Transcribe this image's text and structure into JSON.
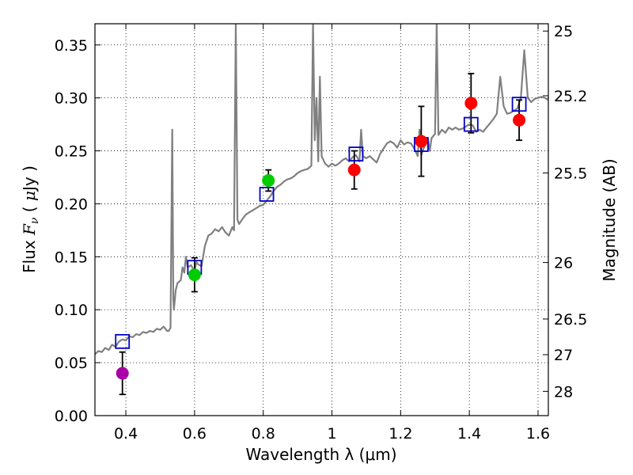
{
  "chart_data": {
    "type": "scatter",
    "xlabel": "Wavelength  λ (μm)",
    "ylabel_parts": [
      "Flux ",
      "F",
      "ν",
      "  ( ",
      "μ",
      "Jy )"
    ],
    "y2label": "Magnitude (AB)",
    "xlim": [
      0.31,
      1.63
    ],
    "ylim": [
      0.0,
      0.37
    ],
    "grid": true,
    "x_ticks": [
      0.4,
      0.6,
      0.8,
      1.0,
      1.2,
      1.4,
      1.6
    ],
    "x_tick_labels": [
      "0.4",
      "0.6",
      "0.8",
      "1",
      "1.2",
      "1.4",
      "1.6"
    ],
    "y_ticks": [
      0.0,
      0.05,
      0.1,
      0.15,
      0.2,
      0.25,
      0.3,
      0.35
    ],
    "y_tick_labels": [
      "0.00",
      "0.05",
      "0.10",
      "0.15",
      "0.20",
      "0.25",
      "0.30",
      "0.35"
    ],
    "y2_ticks": [
      25,
      25.2,
      25.5,
      26,
      26.5,
      27,
      28
    ],
    "y2_tick_labels": [
      "25",
      "25.2",
      "25.5",
      "26",
      "26.5",
      "27",
      "28"
    ],
    "colors": {
      "purple": "#aa00aa",
      "green": "#00cc00",
      "red": "#ff0000",
      "model": "#808080",
      "box": "#0000cc",
      "errorbar": "#000000",
      "grid": "#000000"
    },
    "observed": [
      {
        "x": 0.39,
        "y": 0.04,
        "err": 0.02,
        "color": "purple"
      },
      {
        "x": 0.6,
        "y": 0.133,
        "err": 0.016,
        "color": "green"
      },
      {
        "x": 0.815,
        "y": 0.222,
        "err": 0.01,
        "color": "green"
      },
      {
        "x": 1.065,
        "y": 0.232,
        "err": 0.018,
        "color": "red"
      },
      {
        "x": 1.26,
        "y": 0.259,
        "err": 0.033,
        "color": "red"
      },
      {
        "x": 1.405,
        "y": 0.295,
        "err": 0.028,
        "color": "red"
      },
      {
        "x": 1.545,
        "y": 0.279,
        "err": 0.019,
        "color": "red"
      }
    ],
    "model_photometry": [
      {
        "x": 0.39,
        "y": 0.07
      },
      {
        "x": 0.6,
        "y": 0.14
      },
      {
        "x": 0.81,
        "y": 0.209
      },
      {
        "x": 1.07,
        "y": 0.247
      },
      {
        "x": 1.26,
        "y": 0.256
      },
      {
        "x": 1.405,
        "y": 0.275
      },
      {
        "x": 1.545,
        "y": 0.294
      }
    ],
    "model_spectrum": [
      [
        0.31,
        0.058
      ],
      [
        0.32,
        0.061
      ],
      [
        0.33,
        0.06
      ],
      [
        0.34,
        0.064
      ],
      [
        0.35,
        0.062
      ],
      [
        0.36,
        0.067
      ],
      [
        0.37,
        0.065
      ],
      [
        0.38,
        0.07
      ],
      [
        0.39,
        0.072
      ],
      [
        0.4,
        0.071
      ],
      [
        0.41,
        0.075
      ],
      [
        0.42,
        0.074
      ],
      [
        0.43,
        0.077
      ],
      [
        0.44,
        0.076
      ],
      [
        0.45,
        0.079
      ],
      [
        0.46,
        0.078
      ],
      [
        0.47,
        0.08
      ],
      [
        0.48,
        0.079
      ],
      [
        0.49,
        0.082
      ],
      [
        0.5,
        0.081
      ],
      [
        0.51,
        0.084
      ],
      [
        0.52,
        0.08
      ],
      [
        0.525,
        0.08
      ],
      [
        0.53,
        0.083
      ],
      [
        0.535,
        0.27
      ],
      [
        0.538,
        0.11
      ],
      [
        0.54,
        0.1
      ],
      [
        0.545,
        0.118
      ],
      [
        0.55,
        0.125
      ],
      [
        0.56,
        0.128
      ],
      [
        0.565,
        0.14
      ],
      [
        0.57,
        0.135
      ],
      [
        0.575,
        0.15
      ],
      [
        0.58,
        0.14
      ],
      [
        0.59,
        0.142
      ],
      [
        0.6,
        0.136
      ],
      [
        0.605,
        0.145
      ],
      [
        0.61,
        0.143
      ],
      [
        0.62,
        0.141
      ],
      [
        0.625,
        0.15
      ],
      [
        0.63,
        0.16
      ],
      [
        0.64,
        0.17
      ],
      [
        0.65,
        0.172
      ],
      [
        0.66,
        0.176
      ],
      [
        0.67,
        0.174
      ],
      [
        0.68,
        0.178
      ],
      [
        0.69,
        0.173
      ],
      [
        0.7,
        0.17
      ],
      [
        0.71,
        0.178
      ],
      [
        0.715,
        0.175
      ],
      [
        0.72,
        0.37
      ],
      [
        0.725,
        0.185
      ],
      [
        0.73,
        0.181
      ],
      [
        0.74,
        0.186
      ],
      [
        0.75,
        0.19
      ],
      [
        0.76,
        0.192
      ],
      [
        0.77,
        0.194
      ],
      [
        0.78,
        0.196
      ],
      [
        0.79,
        0.198
      ],
      [
        0.8,
        0.199
      ],
      [
        0.81,
        0.203
      ],
      [
        0.82,
        0.207
      ],
      [
        0.83,
        0.212
      ],
      [
        0.84,
        0.216
      ],
      [
        0.85,
        0.218
      ],
      [
        0.86,
        0.221
      ],
      [
        0.87,
        0.223
      ],
      [
        0.88,
        0.224
      ],
      [
        0.89,
        0.226
      ],
      [
        0.9,
        0.229
      ],
      [
        0.91,
        0.231
      ],
      [
        0.92,
        0.232
      ],
      [
        0.93,
        0.233
      ],
      [
        0.94,
        0.236
      ],
      [
        0.945,
        0.37
      ],
      [
        0.95,
        0.26
      ],
      [
        0.955,
        0.3
      ],
      [
        0.96,
        0.24
      ],
      [
        0.965,
        0.32
      ],
      [
        0.97,
        0.245
      ],
      [
        0.98,
        0.238
      ],
      [
        0.99,
        0.235
      ],
      [
        1.0,
        0.238
      ],
      [
        1.01,
        0.236
      ],
      [
        1.02,
        0.238
      ],
      [
        1.03,
        0.241
      ],
      [
        1.04,
        0.243
      ],
      [
        1.05,
        0.24
      ],
      [
        1.06,
        0.244
      ],
      [
        1.07,
        0.246
      ],
      [
        1.08,
        0.24
      ],
      [
        1.085,
        0.27
      ],
      [
        1.09,
        0.245
      ],
      [
        1.1,
        0.243
      ],
      [
        1.11,
        0.245
      ],
      [
        1.12,
        0.242
      ],
      [
        1.13,
        0.239
      ],
      [
        1.14,
        0.247
      ],
      [
        1.15,
        0.252
      ],
      [
        1.16,
        0.257
      ],
      [
        1.17,
        0.259
      ],
      [
        1.18,
        0.257
      ],
      [
        1.19,
        0.253
      ],
      [
        1.2,
        0.26
      ],
      [
        1.21,
        0.256
      ],
      [
        1.22,
        0.258
      ],
      [
        1.23,
        0.257
      ],
      [
        1.24,
        0.252
      ],
      [
        1.25,
        0.245
      ],
      [
        1.255,
        0.27
      ],
      [
        1.26,
        0.246
      ],
      [
        1.27,
        0.255
      ],
      [
        1.28,
        0.26
      ],
      [
        1.285,
        0.25
      ],
      [
        1.29,
        0.262
      ],
      [
        1.3,
        0.266
      ],
      [
        1.305,
        0.37
      ],
      [
        1.31,
        0.265
      ],
      [
        1.32,
        0.27
      ],
      [
        1.33,
        0.267
      ],
      [
        1.34,
        0.272
      ],
      [
        1.35,
        0.27
      ],
      [
        1.36,
        0.272
      ],
      [
        1.37,
        0.27
      ],
      [
        1.38,
        0.271
      ],
      [
        1.39,
        0.273
      ],
      [
        1.4,
        0.275
      ],
      [
        1.41,
        0.274
      ],
      [
        1.42,
        0.268
      ],
      [
        1.43,
        0.27
      ],
      [
        1.44,
        0.268
      ],
      [
        1.45,
        0.272
      ],
      [
        1.46,
        0.276
      ],
      [
        1.47,
        0.28
      ],
      [
        1.48,
        0.285
      ],
      [
        1.49,
        0.32
      ],
      [
        1.5,
        0.292
      ],
      [
        1.51,
        0.285
      ],
      [
        1.52,
        0.286
      ],
      [
        1.53,
        0.288
      ],
      [
        1.54,
        0.29
      ],
      [
        1.55,
        0.3
      ],
      [
        1.56,
        0.345
      ],
      [
        1.57,
        0.3
      ],
      [
        1.58,
        0.296
      ],
      [
        1.59,
        0.299
      ],
      [
        1.6,
        0.3
      ],
      [
        1.61,
        0.301
      ],
      [
        1.62,
        0.3
      ],
      [
        1.63,
        0.298
      ]
    ]
  }
}
